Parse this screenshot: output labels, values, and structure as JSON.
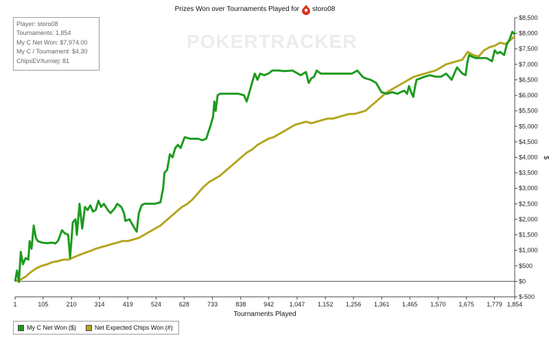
{
  "watermark": "POKERTRACKER",
  "info_box": {
    "lines": [
      "Player: storo08",
      "Tournaments: 1,854",
      "My C Net Won: $7,974.00",
      "My C / Tournament: $4.30",
      "ChipsEV/turniej: 81"
    ]
  },
  "chart_data": {
    "type": "line",
    "title": "Prizes Won over Tournaments Played for storo08",
    "player": "storo08",
    "xlabel": "Tournaments Played",
    "ylabel": "$",
    "xlim": [
      1,
      1854
    ],
    "ylim": [
      -500,
      8500
    ],
    "x_ticks": [
      1,
      105,
      210,
      314,
      419,
      524,
      628,
      733,
      838,
      942,
      1047,
      1152,
      1256,
      1361,
      1465,
      1570,
      1675,
      1779,
      1854
    ],
    "x_tick_labels": [
      "1",
      "105",
      "210",
      "314",
      "419",
      "524",
      "628",
      "733",
      "838",
      "942",
      "1,047",
      "1,152",
      "1,256",
      "1,361",
      "1,465",
      "1,570",
      "1,675",
      "1,779",
      "1,854"
    ],
    "y_ticks": [
      -500,
      0,
      500,
      1000,
      1500,
      2000,
      2500,
      3000,
      3500,
      4000,
      4500,
      5000,
      5500,
      6000,
      6500,
      7000,
      7500,
      8000,
      8500
    ],
    "y_tick_labels": [
      "$-500",
      "$0",
      "$500",
      "$1,000",
      "$1,500",
      "$2,000",
      "$2,500",
      "$3,000",
      "$3,500",
      "$4,000",
      "$4,500",
      "$5,000",
      "$5,500",
      "$6,000",
      "$6,500",
      "$7,000",
      "$7,500",
      "$8,000",
      "$8,500"
    ],
    "grid": false,
    "legend_position": "bottom-left",
    "series": [
      {
        "name": "My C Net Won ($)",
        "color": "#1e9a1e",
        "points": [
          [
            1,
            0
          ],
          [
            8,
            350
          ],
          [
            15,
            -20
          ],
          [
            22,
            950
          ],
          [
            30,
            550
          ],
          [
            40,
            750
          ],
          [
            50,
            700
          ],
          [
            55,
            1300
          ],
          [
            62,
            1050
          ],
          [
            70,
            1800
          ],
          [
            78,
            1400
          ],
          [
            85,
            1300
          ],
          [
            100,
            1250
          ],
          [
            120,
            1230
          ],
          [
            140,
            1250
          ],
          [
            150,
            1220
          ],
          [
            160,
            1300
          ],
          [
            175,
            1650
          ],
          [
            185,
            1550
          ],
          [
            198,
            1500
          ],
          [
            205,
            750
          ],
          [
            215,
            1900
          ],
          [
            225,
            2000
          ],
          [
            230,
            1500
          ],
          [
            240,
            2500
          ],
          [
            250,
            1700
          ],
          [
            260,
            2400
          ],
          [
            270,
            2300
          ],
          [
            280,
            2450
          ],
          [
            290,
            2250
          ],
          [
            300,
            2300
          ],
          [
            310,
            2600
          ],
          [
            320,
            2400
          ],
          [
            330,
            2500
          ],
          [
            345,
            2300
          ],
          [
            355,
            2200
          ],
          [
            370,
            2350
          ],
          [
            380,
            2500
          ],
          [
            395,
            2400
          ],
          [
            405,
            2200
          ],
          [
            410,
            1950
          ],
          [
            425,
            2000
          ],
          [
            435,
            1850
          ],
          [
            445,
            1700
          ],
          [
            452,
            1600
          ],
          [
            460,
            2200
          ],
          [
            470,
            2450
          ],
          [
            480,
            2500
          ],
          [
            500,
            2500
          ],
          [
            520,
            2500
          ],
          [
            540,
            2550
          ],
          [
            550,
            3000
          ],
          [
            555,
            3500
          ],
          [
            565,
            3600
          ],
          [
            575,
            4100
          ],
          [
            585,
            4000
          ],
          [
            595,
            4300
          ],
          [
            605,
            4400
          ],
          [
            615,
            4300
          ],
          [
            630,
            4650
          ],
          [
            650,
            4600
          ],
          [
            680,
            4600
          ],
          [
            695,
            4550
          ],
          [
            710,
            4600
          ],
          [
            725,
            5000
          ],
          [
            735,
            5300
          ],
          [
            740,
            5800
          ],
          [
            745,
            5500
          ],
          [
            752,
            6000
          ],
          [
            760,
            6050
          ],
          [
            780,
            6050
          ],
          [
            800,
            6050
          ],
          [
            830,
            6050
          ],
          [
            850,
            6000
          ],
          [
            860,
            5800
          ],
          [
            870,
            6100
          ],
          [
            880,
            6400
          ],
          [
            890,
            6700
          ],
          [
            900,
            6500
          ],
          [
            910,
            6700
          ],
          [
            925,
            6650
          ],
          [
            940,
            6700
          ],
          [
            955,
            6800
          ],
          [
            980,
            6800
          ],
          [
            1000,
            6780
          ],
          [
            1030,
            6800
          ],
          [
            1060,
            6650
          ],
          [
            1080,
            6750
          ],
          [
            1090,
            6400
          ],
          [
            1100,
            6550
          ],
          [
            1110,
            6600
          ],
          [
            1120,
            6800
          ],
          [
            1135,
            6700
          ],
          [
            1150,
            6700
          ],
          [
            1200,
            6700
          ],
          [
            1250,
            6700
          ],
          [
            1270,
            6800
          ],
          [
            1290,
            6600
          ],
          [
            1300,
            6550
          ],
          [
            1320,
            6500
          ],
          [
            1340,
            6400
          ],
          [
            1360,
            6100
          ],
          [
            1380,
            6050
          ],
          [
            1400,
            6100
          ],
          [
            1420,
            6050
          ],
          [
            1430,
            6100
          ],
          [
            1445,
            6150
          ],
          [
            1455,
            6050
          ],
          [
            1462,
            6300
          ],
          [
            1470,
            6100
          ],
          [
            1478,
            5950
          ],
          [
            1485,
            6300
          ],
          [
            1490,
            6500
          ],
          [
            1505,
            6550
          ],
          [
            1520,
            6600
          ],
          [
            1540,
            6650
          ],
          [
            1560,
            6600
          ],
          [
            1580,
            6600
          ],
          [
            1600,
            6700
          ],
          [
            1620,
            6500
          ],
          [
            1640,
            6900
          ],
          [
            1660,
            6700
          ],
          [
            1672,
            6650
          ],
          [
            1678,
            7050
          ],
          [
            1685,
            7300
          ],
          [
            1695,
            7250
          ],
          [
            1710,
            7200
          ],
          [
            1730,
            7200
          ],
          [
            1750,
            7200
          ],
          [
            1770,
            7100
          ],
          [
            1780,
            7450
          ],
          [
            1790,
            7350
          ],
          [
            1800,
            7400
          ],
          [
            1815,
            7300
          ],
          [
            1825,
            7650
          ],
          [
            1835,
            7800
          ],
          [
            1845,
            8050
          ],
          [
            1854,
            7974
          ]
        ]
      },
      {
        "name": "Net Expected Chips Won (#)",
        "color": "#b3a51f",
        "points": [
          [
            1,
            0
          ],
          [
            20,
            50
          ],
          [
            40,
            150
          ],
          [
            60,
            300
          ],
          [
            80,
            420
          ],
          [
            100,
            500
          ],
          [
            120,
            550
          ],
          [
            140,
            620
          ],
          [
            160,
            650
          ],
          [
            180,
            700
          ],
          [
            200,
            700
          ],
          [
            220,
            780
          ],
          [
            240,
            850
          ],
          [
            260,
            920
          ],
          [
            280,
            980
          ],
          [
            300,
            1050
          ],
          [
            320,
            1100
          ],
          [
            340,
            1150
          ],
          [
            360,
            1200
          ],
          [
            380,
            1250
          ],
          [
            400,
            1300
          ],
          [
            420,
            1300
          ],
          [
            440,
            1350
          ],
          [
            460,
            1400
          ],
          [
            480,
            1500
          ],
          [
            500,
            1600
          ],
          [
            520,
            1700
          ],
          [
            540,
            1800
          ],
          [
            560,
            1950
          ],
          [
            580,
            2100
          ],
          [
            600,
            2250
          ],
          [
            620,
            2400
          ],
          [
            640,
            2500
          ],
          [
            660,
            2650
          ],
          [
            680,
            2850
          ],
          [
            700,
            3050
          ],
          [
            720,
            3200
          ],
          [
            740,
            3300
          ],
          [
            760,
            3400
          ],
          [
            780,
            3550
          ],
          [
            800,
            3700
          ],
          [
            820,
            3850
          ],
          [
            840,
            4000
          ],
          [
            860,
            4150
          ],
          [
            880,
            4250
          ],
          [
            900,
            4400
          ],
          [
            920,
            4500
          ],
          [
            940,
            4600
          ],
          [
            960,
            4650
          ],
          [
            980,
            4750
          ],
          [
            1000,
            4850
          ],
          [
            1020,
            4950
          ],
          [
            1040,
            5050
          ],
          [
            1060,
            5100
          ],
          [
            1080,
            5150
          ],
          [
            1100,
            5100
          ],
          [
            1120,
            5150
          ],
          [
            1140,
            5200
          ],
          [
            1160,
            5250
          ],
          [
            1180,
            5250
          ],
          [
            1200,
            5300
          ],
          [
            1220,
            5350
          ],
          [
            1240,
            5400
          ],
          [
            1260,
            5400
          ],
          [
            1280,
            5450
          ],
          [
            1300,
            5500
          ],
          [
            1320,
            5650
          ],
          [
            1340,
            5800
          ],
          [
            1360,
            5950
          ],
          [
            1380,
            6100
          ],
          [
            1400,
            6200
          ],
          [
            1420,
            6300
          ],
          [
            1440,
            6400
          ],
          [
            1460,
            6500
          ],
          [
            1480,
            6600
          ],
          [
            1500,
            6650
          ],
          [
            1520,
            6700
          ],
          [
            1540,
            6750
          ],
          [
            1560,
            6800
          ],
          [
            1580,
            6900
          ],
          [
            1600,
            7000
          ],
          [
            1620,
            7050
          ],
          [
            1640,
            7100
          ],
          [
            1660,
            7150
          ],
          [
            1680,
            7400
          ],
          [
            1700,
            7300
          ],
          [
            1720,
            7250
          ],
          [
            1740,
            7450
          ],
          [
            1760,
            7550
          ],
          [
            1780,
            7600
          ],
          [
            1800,
            7700
          ],
          [
            1820,
            7650
          ],
          [
            1840,
            7800
          ],
          [
            1854,
            7900
          ]
        ]
      }
    ]
  }
}
